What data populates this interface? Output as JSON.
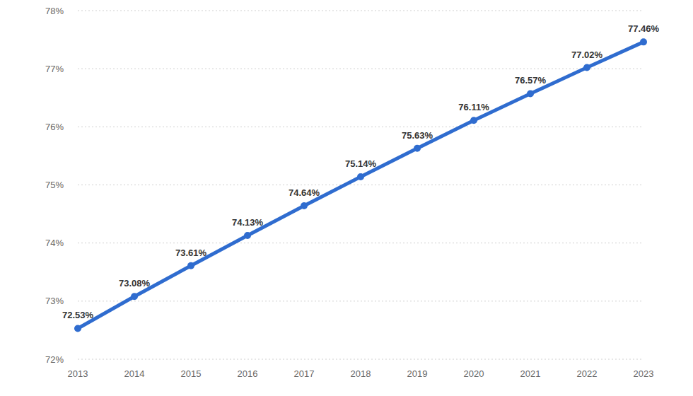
{
  "chart_data": {
    "type": "line",
    "categories": [
      "2013",
      "2014",
      "2015",
      "2016",
      "2017",
      "2018",
      "2019",
      "2020",
      "2021",
      "2022",
      "2023"
    ],
    "values": [
      72.53,
      73.08,
      73.61,
      74.13,
      74.64,
      75.14,
      75.63,
      76.11,
      76.57,
      77.02,
      77.46
    ],
    "value_labels": [
      "72.53%",
      "73.08%",
      "73.61%",
      "74.13%",
      "74.64%",
      "75.14%",
      "75.63%",
      "76.11%",
      "76.57%",
      "77.02%",
      "77.46%"
    ],
    "color": "#2f6ccf",
    "marker": "circle",
    "ylim": [
      72,
      78
    ],
    "yticks": [
      {
        "value": 72,
        "label": "72%"
      },
      {
        "value": 73,
        "label": "73%"
      },
      {
        "value": 74,
        "label": "74%"
      },
      {
        "value": 75,
        "label": "75%"
      },
      {
        "value": 76,
        "label": "76%"
      },
      {
        "value": 77,
        "label": "77%"
      },
      {
        "value": 78,
        "label": "78%"
      }
    ],
    "grid": true,
    "data_labels": true
  }
}
